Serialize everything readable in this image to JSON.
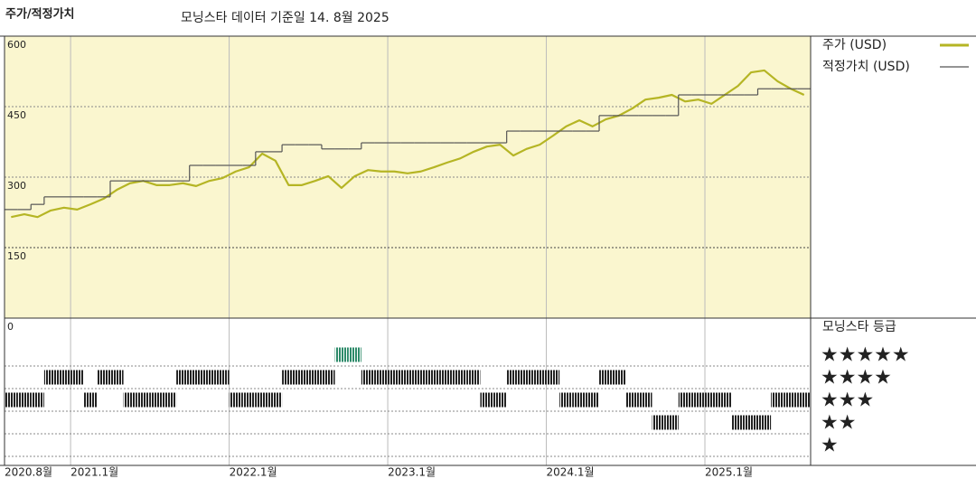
{
  "chart_data": [
    {
      "type": "line",
      "title": "주가/적정가치",
      "subtitle": "모닝스타 데이터 기준일 14. 8월 2025",
      "x": [
        "2020-08",
        "2020-09",
        "2020-10",
        "2020-11",
        "2020-12",
        "2021-01",
        "2021-02",
        "2021-03",
        "2021-04",
        "2021-05",
        "2021-06",
        "2021-07",
        "2021-08",
        "2021-09",
        "2021-10",
        "2021-11",
        "2021-12",
        "2022-01",
        "2022-02",
        "2022-03",
        "2022-04",
        "2022-05",
        "2022-06",
        "2022-07",
        "2022-08",
        "2022-09",
        "2022-10",
        "2022-11",
        "2022-12",
        "2023-01",
        "2023-02",
        "2023-03",
        "2023-04",
        "2023-05",
        "2023-06",
        "2023-07",
        "2023-08",
        "2023-09",
        "2023-10",
        "2023-11",
        "2023-12",
        "2024-01",
        "2024-02",
        "2024-03",
        "2024-04",
        "2024-05",
        "2024-06",
        "2024-07",
        "2024-08",
        "2024-09",
        "2024-10",
        "2024-11",
        "2024-12",
        "2025-01",
        "2025-02",
        "2025-03",
        "2025-04",
        "2025-05",
        "2025-06",
        "2025-07",
        "2025-08"
      ],
      "series": [
        {
          "name": "주가 (USD)",
          "color": "#b5b524",
          "style": "line",
          "values": [
            215,
            221,
            215,
            229,
            235,
            231,
            242,
            254,
            273,
            287,
            292,
            283,
            283,
            287,
            281,
            292,
            298,
            312,
            321,
            350,
            335,
            283,
            283,
            292,
            302,
            277,
            302,
            315,
            312,
            312,
            308,
            312,
            321,
            331,
            340,
            354,
            365,
            369,
            346,
            360,
            369,
            388,
            408,
            421,
            408,
            423,
            431,
            446,
            465,
            469,
            475,
            461,
            465,
            456,
            475,
            494,
            523,
            527,
            504,
            488,
            475
          ]
        },
        {
          "name": "적정가치 (USD)",
          "color": "#555555",
          "style": "step",
          "values": [
            231,
            231,
            242,
            258,
            258,
            258,
            258,
            258,
            292,
            292,
            292,
            292,
            292,
            292,
            325,
            325,
            325,
            325,
            325,
            354,
            354,
            369,
            369,
            369,
            360,
            360,
            360,
            373,
            373,
            373,
            373,
            373,
            373,
            373,
            373,
            373,
            373,
            373,
            398,
            398,
            398,
            398,
            398,
            398,
            398,
            431,
            431,
            431,
            431,
            431,
            431,
            475,
            475,
            475,
            475,
            475,
            475,
            488,
            488,
            488,
            488
          ]
        }
      ],
      "xlim": [
        "2020-08",
        "2025-09"
      ],
      "xticks": [
        {
          "value": "2020-08",
          "label": "2020.8월"
        },
        {
          "value": "2021-01",
          "label": "2021.1월"
        },
        {
          "value": "2022-01",
          "label": "2022.1월"
        },
        {
          "value": "2023-01",
          "label": "2023.1월"
        },
        {
          "value": "2024-01",
          "label": "2024.1월"
        },
        {
          "value": "2025-01",
          "label": "2025.1월"
        }
      ],
      "ylim": [
        0,
        600
      ],
      "yticks": [
        0,
        150,
        300,
        450,
        600
      ],
      "grid": true,
      "background": "#faf6cf"
    },
    {
      "type": "rating",
      "title": "모닝스타 등급",
      "x": [
        "2020-08",
        "2020-09",
        "2020-10",
        "2020-11",
        "2020-12",
        "2021-01",
        "2021-02",
        "2021-03",
        "2021-04",
        "2021-05",
        "2021-06",
        "2021-07",
        "2021-08",
        "2021-09",
        "2021-10",
        "2021-11",
        "2021-12",
        "2022-01",
        "2022-02",
        "2022-03",
        "2022-04",
        "2022-05",
        "2022-06",
        "2022-07",
        "2022-08",
        "2022-09",
        "2022-10",
        "2022-11",
        "2022-12",
        "2023-01",
        "2023-02",
        "2023-03",
        "2023-04",
        "2023-05",
        "2023-06",
        "2023-07",
        "2023-08",
        "2023-09",
        "2023-10",
        "2023-11",
        "2023-12",
        "2024-01",
        "2024-02",
        "2024-03",
        "2024-04",
        "2024-05",
        "2024-06",
        "2024-07",
        "2024-08",
        "2024-09",
        "2024-10",
        "2024-11",
        "2024-12",
        "2025-01",
        "2025-02",
        "2025-03",
        "2025-04",
        "2025-05",
        "2025-06",
        "2025-07",
        "2025-08"
      ],
      "values": [
        3,
        3,
        3,
        4,
        4,
        4,
        3,
        4,
        4,
        3,
        3,
        3,
        3,
        4,
        4,
        4,
        4,
        3,
        3,
        3,
        3,
        4,
        4,
        4,
        4,
        5,
        5,
        4,
        4,
        4,
        4,
        4,
        4,
        4,
        4,
        4,
        3,
        3,
        4,
        4,
        4,
        4,
        3,
        3,
        3,
        4,
        4,
        3,
        3,
        2,
        2,
        3,
        3,
        3,
        3,
        2,
        2,
        2,
        3,
        3,
        3
      ],
      "ylim": [
        0.5,
        5.5
      ],
      "yticks": [
        {
          "value": 5,
          "label": "★★★★★"
        },
        {
          "value": 4,
          "label": "★★★★"
        },
        {
          "value": 3,
          "label": "★★★"
        },
        {
          "value": 2,
          "label": "★★"
        },
        {
          "value": 1,
          "label": "★"
        }
      ],
      "color": "#222222",
      "highlight_color": "#2e8b6a"
    }
  ]
}
